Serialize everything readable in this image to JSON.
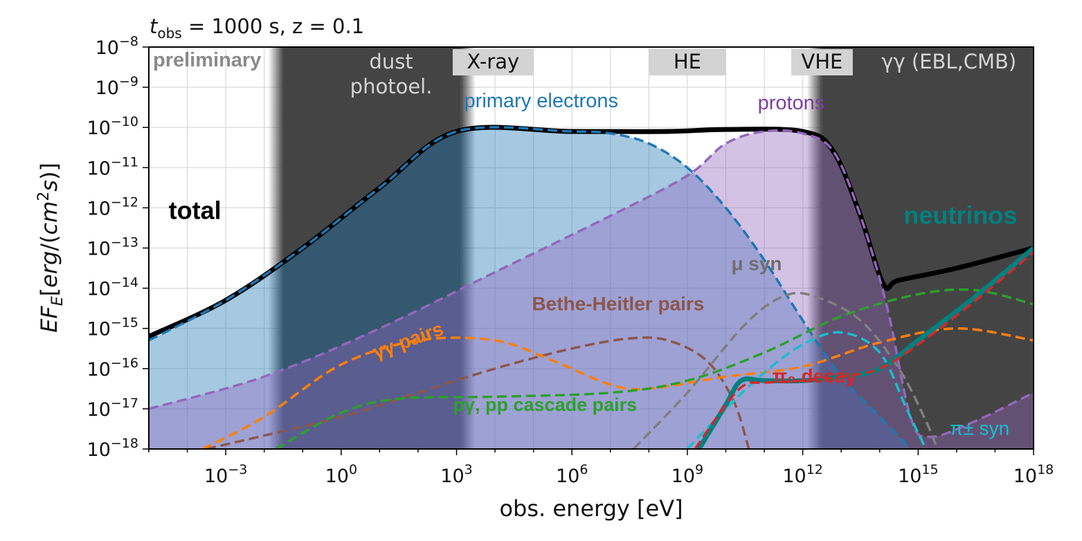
{
  "header": {
    "t_symbol": "t",
    "t_subscript": "obs",
    "text": " = 1000 s, z = 0.1"
  },
  "watermark": "preliminary",
  "chart_data": {
    "type": "line",
    "xlabel": "obs. energy [eV]",
    "ylabel": "EF_E[erg/(cm^2 s)]",
    "x_scale": "log",
    "y_scale": "log",
    "xlim_log10": [
      -5,
      18
    ],
    "ylim_log10": [
      -18,
      -8
    ],
    "x_tick_labels": [
      {
        "base": "10",
        "exp": "−3",
        "log10": -3
      },
      {
        "base": "10",
        "exp": "0",
        "log10": 0
      },
      {
        "base": "10",
        "exp": "3",
        "log10": 3
      },
      {
        "base": "10",
        "exp": "6",
        "log10": 6
      },
      {
        "base": "10",
        "exp": "9",
        "log10": 9
      },
      {
        "base": "10",
        "exp": "12",
        "log10": 12
      },
      {
        "base": "10",
        "exp": "15",
        "log10": 15
      },
      {
        "base": "10",
        "exp": "18",
        "log10": 18
      }
    ],
    "y_tick_labels": [
      {
        "base": "10",
        "exp": "−8",
        "log10": -8
      },
      {
        "base": "10",
        "exp": "−9",
        "log10": -9
      },
      {
        "base": "10",
        "exp": "−10",
        "log10": -10
      },
      {
        "base": "10",
        "exp": "−11",
        "log10": -11
      },
      {
        "base": "10",
        "exp": "−12",
        "log10": -12
      },
      {
        "base": "10",
        "exp": "−13",
        "log10": -13
      },
      {
        "base": "10",
        "exp": "−14",
        "log10": -14
      },
      {
        "base": "10",
        "exp": "−15",
        "log10": -15
      },
      {
        "base": "10",
        "exp": "−16",
        "log10": -16
      },
      {
        "base": "10",
        "exp": "−17",
        "log10": -17
      },
      {
        "base": "10",
        "exp": "−18",
        "log10": -18
      }
    ],
    "grid": true,
    "bands": [
      {
        "label_lines": [
          "dust",
          "photoel."
        ],
        "x0_log10": -1.5,
        "x1_log10": 3.1,
        "style": "dark",
        "label_x_log10": 1.3
      },
      {
        "label_lines": [
          "γγ (EBL,CMB)"
        ],
        "x0_log10": 12.5,
        "x1_log10": 18,
        "style": "dark",
        "label_x_log10": 15.8
      },
      {
        "label_lines": [
          "X-ray"
        ],
        "x0_log10": 2.9,
        "x1_log10": 5.0,
        "style": "light"
      },
      {
        "label_lines": [
          "HE"
        ],
        "x0_log10": 8.0,
        "x1_log10": 10.0,
        "style": "light"
      },
      {
        "label_lines": [
          "VHE"
        ],
        "x0_log10": 11.7,
        "x1_log10": 13.3,
        "style": "light"
      }
    ],
    "series": [
      {
        "name": "total",
        "color": "#000000",
        "style": "solid",
        "width": 7,
        "points": [
          [
            -5,
            -15.2
          ],
          [
            -3,
            -14.3
          ],
          [
            -1,
            -13.0
          ],
          [
            1,
            -11.5
          ],
          [
            3,
            -10.1
          ],
          [
            6,
            -10.1
          ],
          [
            8.5,
            -10.1
          ],
          [
            10,
            -10.05
          ],
          [
            12,
            -10.1
          ],
          [
            12.8,
            -10.6
          ],
          [
            13.5,
            -12.2
          ],
          [
            14.1,
            -13.9
          ],
          [
            14.5,
            -13.8
          ],
          [
            16,
            -13.5
          ],
          [
            18,
            -13.0
          ]
        ]
      },
      {
        "name": "primary electrons",
        "color": "#1f77b4",
        "style": "dashed",
        "width": 3.5,
        "fill": "rgba(31,119,180,0.4)",
        "points": [
          [
            -5,
            -15.3
          ],
          [
            -3,
            -14.3
          ],
          [
            -1,
            -13.0
          ],
          [
            1,
            -11.5
          ],
          [
            3,
            -10.1
          ],
          [
            6,
            -10.1
          ],
          [
            7,
            -10.15
          ],
          [
            8,
            -10.4
          ],
          [
            9,
            -11.0
          ],
          [
            10,
            -12.0
          ],
          [
            11,
            -13.3
          ],
          [
            12,
            -14.8
          ],
          [
            13,
            -16.2
          ],
          [
            14,
            -17.2
          ],
          [
            14.8,
            -18.0
          ]
        ]
      },
      {
        "name": "protons",
        "color": "#9467bd",
        "style": "dashed",
        "width": 3.5,
        "fill": "rgba(148,103,189,0.4)",
        "points": [
          [
            -5,
            -17.0
          ],
          [
            -2,
            -16.2
          ],
          [
            1,
            -15.0
          ],
          [
            4,
            -13.6
          ],
          [
            7,
            -12.2
          ],
          [
            9,
            -11.2
          ],
          [
            10,
            -10.4
          ],
          [
            11,
            -10.1
          ],
          [
            12,
            -10.15
          ],
          [
            12.8,
            -10.6
          ],
          [
            13.5,
            -12.2
          ],
          [
            14.2,
            -14.5
          ],
          [
            14.8,
            -17.2
          ],
          [
            15.3,
            -17.7
          ],
          [
            16.5,
            -17.3
          ],
          [
            18,
            -16.6
          ]
        ]
      },
      {
        "name": "Bethe-Heitler pairs",
        "color": "#8c564b",
        "style": "dashed",
        "width": 3.5,
        "points": [
          [
            -3.5,
            -18.0
          ],
          [
            0,
            -17.2
          ],
          [
            2,
            -16.6
          ],
          [
            4,
            -16.0
          ],
          [
            6,
            -15.5
          ],
          [
            7.5,
            -15.25
          ],
          [
            8.5,
            -15.3
          ],
          [
            9.5,
            -15.8
          ],
          [
            10.2,
            -16.8
          ],
          [
            10.6,
            -18.0
          ]
        ]
      },
      {
        "name": "γγ pairs",
        "color": "#ff7f0e",
        "style": "dashed",
        "width": 3.5,
        "points": [
          [
            -3.6,
            -18.0
          ],
          [
            -2,
            -17.2
          ],
          [
            0,
            -15.9
          ],
          [
            2,
            -15.3
          ],
          [
            4,
            -15.3
          ],
          [
            5.5,
            -15.8
          ],
          [
            7,
            -16.4
          ],
          [
            8,
            -16.5
          ],
          [
            10,
            -16.2
          ],
          [
            12,
            -15.95
          ],
          [
            14,
            -15.35
          ],
          [
            16,
            -15.0
          ],
          [
            18,
            -15.3
          ]
        ]
      },
      {
        "name": "pγ, pp cascade pairs",
        "color": "#2ca02c",
        "style": "dashed",
        "width": 3.5,
        "points": [
          [
            -1.7,
            -18.0
          ],
          [
            0,
            -17.1
          ],
          [
            1.5,
            -16.75
          ],
          [
            4,
            -16.7
          ],
          [
            7,
            -16.6
          ],
          [
            9,
            -16.3
          ],
          [
            11,
            -15.6
          ],
          [
            13,
            -14.7
          ],
          [
            15,
            -14.15
          ],
          [
            16.5,
            -14.05
          ],
          [
            18,
            -14.4
          ]
        ]
      },
      {
        "name": "μ syn",
        "color": "#7f7f7f",
        "style": "dashed",
        "width": 3.5,
        "points": [
          [
            7.6,
            -18.0
          ],
          [
            9,
            -16.6
          ],
          [
            10.5,
            -14.9
          ],
          [
            11.5,
            -14.2
          ],
          [
            12.3,
            -14.2
          ],
          [
            13.5,
            -14.8
          ],
          [
            14.5,
            -16.0
          ],
          [
            15.2,
            -17.3
          ],
          [
            15.5,
            -18.0
          ]
        ]
      },
      {
        "name": "π± syn",
        "color": "#17becf",
        "style": "dashed",
        "width": 3.5,
        "points": [
          [
            9.0,
            -18.0
          ],
          [
            10,
            -17.0
          ],
          [
            11,
            -16.1
          ],
          [
            12,
            -15.4
          ],
          [
            13,
            -15.1
          ],
          [
            14,
            -15.6
          ],
          [
            14.7,
            -17.0
          ],
          [
            15.2,
            -18.0
          ]
        ]
      },
      {
        "name": "neutrinos",
        "color": "#008080",
        "style": "solid",
        "width": 7,
        "points": [
          [
            9.3,
            -18.0
          ],
          [
            10,
            -16.9
          ],
          [
            10.4,
            -16.3
          ],
          [
            11,
            -16.3
          ],
          [
            12,
            -16.3
          ],
          [
            13,
            -16.2
          ],
          [
            14,
            -16.0
          ],
          [
            15,
            -15.3
          ],
          [
            16.5,
            -14.2
          ],
          [
            18,
            -13.0
          ]
        ]
      },
      {
        "name": "π0 decay",
        "color": "#d62728",
        "style": "dashed",
        "width": 3.5,
        "points": [
          [
            9.2,
            -18.0
          ],
          [
            10,
            -16.9
          ],
          [
            10.5,
            -16.4
          ],
          [
            11,
            -16.35
          ],
          [
            12,
            -16.3
          ],
          [
            13,
            -16.2
          ],
          [
            14,
            -16.0
          ],
          [
            15,
            -15.4
          ],
          [
            16.5,
            -14.3
          ],
          [
            18,
            -13.1
          ]
        ]
      }
    ],
    "labels": [
      {
        "text": "total",
        "x_log10": -3.8,
        "y_log10": -12.28,
        "color": "#000000",
        "size": 36
      },
      {
        "text": "primary electrons",
        "x_log10": 5.2,
        "y_log10": -9.5,
        "color": "#1f77b4",
        "size": 29,
        "normal": true
      },
      {
        "text": "protons",
        "x_log10": 11.7,
        "y_log10": -9.55,
        "color": "#7b3fa0",
        "size": 29,
        "normal": true
      },
      {
        "text": "neutrinos",
        "x_log10": 16.1,
        "y_log10": -12.4,
        "color": "#008080",
        "size": 36
      },
      {
        "text": "μ syn",
        "x_log10": 10.8,
        "y_log10": -13.55,
        "color": "#6f6f6f",
        "size": 28
      },
      {
        "text": "Bethe-Heitler pairs",
        "x_log10": 7.2,
        "y_log10": -14.55,
        "color": "#8c564b",
        "size": 28
      },
      {
        "text": "γγ pairs",
        "x_log10": 1.8,
        "y_log10": -15.45,
        "color": "#ff7f0e",
        "size": 28,
        "rotate": -20
      },
      {
        "text": "pγ, pp cascade pairs",
        "x_log10": 5.3,
        "y_log10": -17.05,
        "color": "#2ca02c",
        "size": 27
      },
      {
        "text": "π₀ decay",
        "x_log10": 12.3,
        "y_log10": -16.35,
        "color": "#d62728",
        "size": 28
      },
      {
        "text": "π± syn",
        "x_log10": 16.6,
        "y_log10": -17.65,
        "color": "#17becf",
        "size": 28,
        "normal": true
      }
    ]
  }
}
